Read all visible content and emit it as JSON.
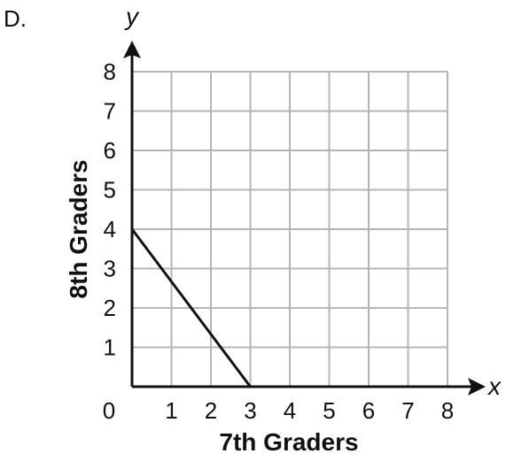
{
  "option_label": "D.",
  "chart_data": {
    "type": "line",
    "xlabel": "7th Graders",
    "ylabel": "8th Graders",
    "x_axis_variable": "x",
    "y_axis_variable": "y",
    "xlim": [
      0,
      8
    ],
    "ylim": [
      0,
      8
    ],
    "x_ticks": [
      "0",
      "1",
      "2",
      "3",
      "4",
      "5",
      "6",
      "7",
      "8"
    ],
    "y_ticks": [
      "1",
      "2",
      "3",
      "4",
      "5",
      "6",
      "7",
      "8"
    ],
    "grid": true,
    "series": [
      {
        "points": [
          [
            0,
            4
          ],
          [
            3,
            0
          ]
        ]
      }
    ]
  }
}
